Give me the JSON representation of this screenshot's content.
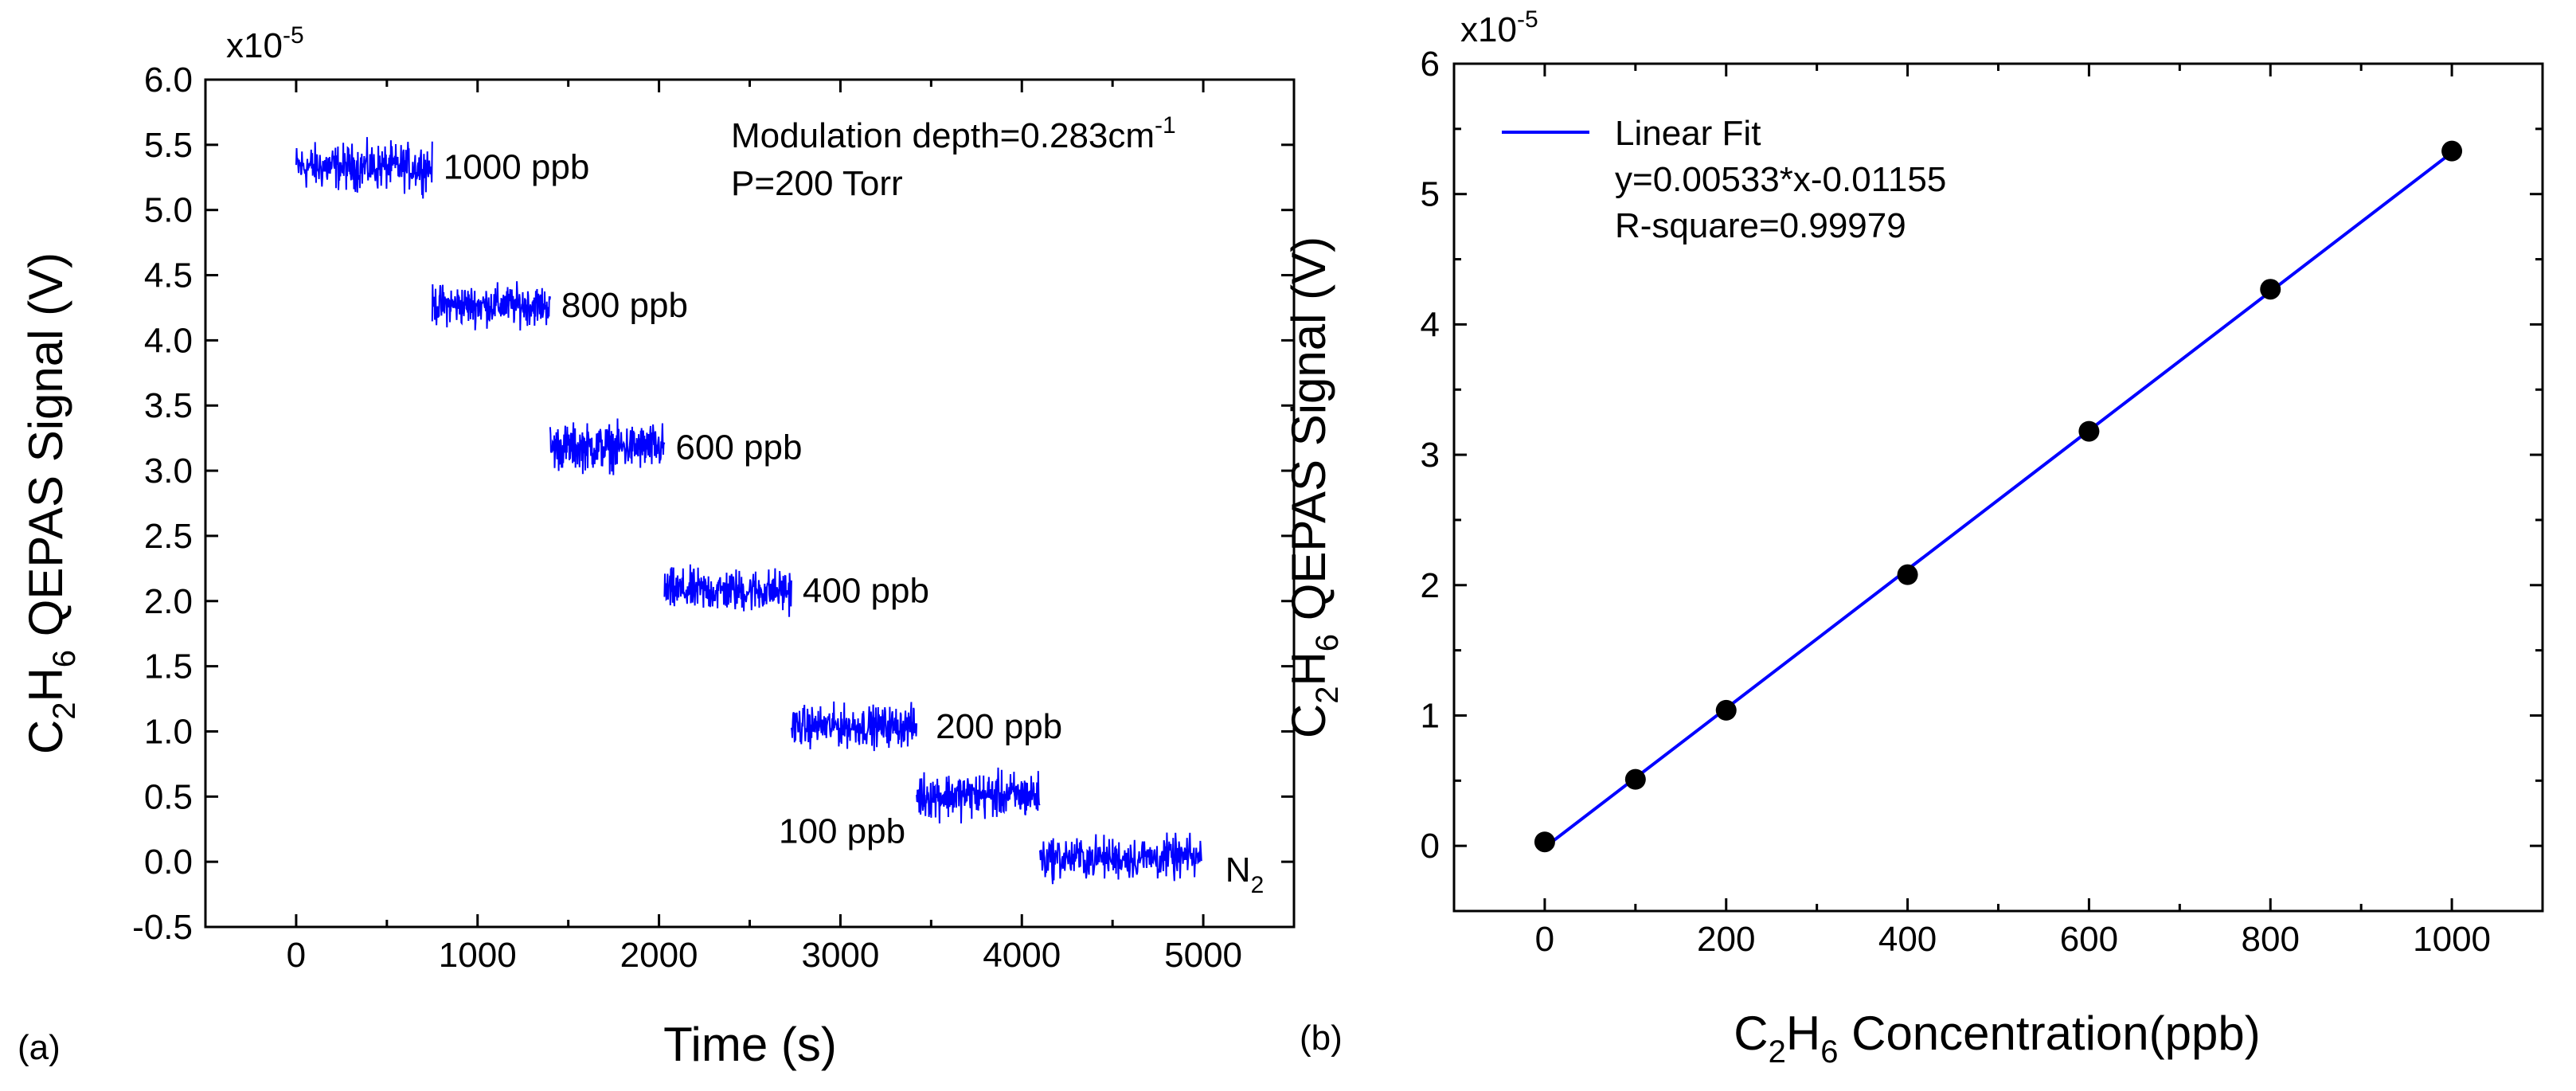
{
  "chart_data": [
    {
      "panel_label": "(a)",
      "type": "line",
      "xlabel": "Time (s)",
      "ylabel": {
        "base": "C",
        "sub1": "2",
        "mid": "H",
        "sub2": "6",
        "rest": " QEPAS Signal (V)"
      },
      "y_multiplier": {
        "base": "x10",
        "exp": "-5"
      },
      "xlim": [
        -500,
        5500
      ],
      "ylim": [
        -0.5,
        6.0
      ],
      "xticks": [
        0,
        1000,
        2000,
        3000,
        4000,
        5000
      ],
      "xtick_labels": [
        "0",
        "1000",
        "2000",
        "3000",
        "4000",
        "5000"
      ],
      "yticks": [
        -0.5,
        0.0,
        0.5,
        1.0,
        1.5,
        2.0,
        2.5,
        3.0,
        3.5,
        4.0,
        4.5,
        5.0,
        5.5,
        6.0
      ],
      "ytick_labels": [
        "-0.5",
        "0.0",
        "0.5",
        "1.0",
        "1.5",
        "2.0",
        "2.5",
        "3.0",
        "3.5",
        "4.0",
        "4.5",
        "5.0",
        "5.5",
        "6.0"
      ],
      "series_color": "#0000ff",
      "annotations": {
        "line1": "Modulation depth=0.283cm",
        "line1_sup": "-1",
        "line2": "P=200 Torr"
      },
      "segments": [
        {
          "label": "1000 ppb",
          "t_start": 0,
          "t_end": 750,
          "mean": 5.33,
          "noise": 0.16
        },
        {
          "label": "800 ppb",
          "t_start": 750,
          "t_end": 1400,
          "mean": 4.27,
          "noise": 0.14
        },
        {
          "label": "600 ppb",
          "t_start": 1400,
          "t_end": 2030,
          "mean": 3.18,
          "noise": 0.16
        },
        {
          "label": "400 ppb",
          "t_start": 2030,
          "t_end": 2730,
          "mean": 2.08,
          "noise": 0.15
        },
        {
          "label": "200 ppb",
          "t_start": 2730,
          "t_end": 3420,
          "mean": 1.04,
          "noise": 0.14
        },
        {
          "label": "100 ppb",
          "t_start": 3420,
          "t_end": 4100,
          "mean": 0.51,
          "noise": 0.16
        },
        {
          "label": "N",
          "label_sub": "2",
          "t_start": 4100,
          "t_end": 4990,
          "mean": 0.03,
          "noise": 0.15
        }
      ]
    },
    {
      "panel_label": "(b)",
      "type": "scatter",
      "xlabel": {
        "base": "C",
        "sub1": "2",
        "mid": "H",
        "sub2": "6",
        "rest": " Concentration(ppb)"
      },
      "ylabel": {
        "base": "C",
        "sub1": "2",
        "mid": "H",
        "sub2": "6",
        "rest": " QEPAS Signal (V)"
      },
      "y_multiplier": {
        "base": "x10",
        "exp": "-5"
      },
      "xlim": [
        -100,
        1100
      ],
      "ylim": [
        -0.5,
        6.0
      ],
      "xticks": [
        0,
        200,
        400,
        600,
        800,
        1000
      ],
      "xtick_labels": [
        "0",
        "200",
        "400",
        "600",
        "800",
        "1000"
      ],
      "yticks": [
        0,
        1,
        2,
        3,
        4,
        5,
        6
      ],
      "ytick_labels": [
        "0",
        "1",
        "2",
        "3",
        "4",
        "5",
        "6"
      ],
      "x": [
        0,
        100,
        200,
        400,
        600,
        800,
        1000
      ],
      "y": [
        0.03,
        0.51,
        1.04,
        2.08,
        3.18,
        4.27,
        5.33
      ],
      "fit": {
        "slope": 0.00533,
        "intercept": -0.01155
      },
      "legend": {
        "label": "Linear Fit",
        "equation": "y=0.00533*x-0.01155",
        "r_square": "R-square=0.99979",
        "placement": "top-left"
      },
      "line_color": "#0000ff",
      "marker_color": "#000000"
    }
  ]
}
